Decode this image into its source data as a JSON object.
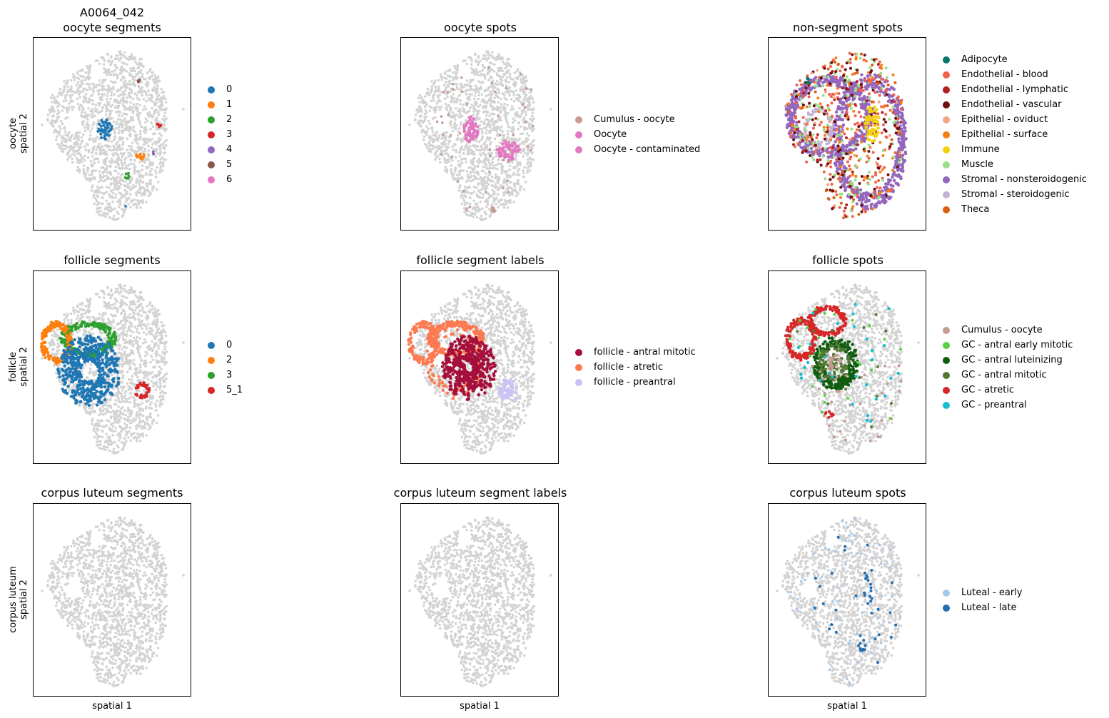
{
  "figure": {
    "sample_id": "A0064_042",
    "background_color": "#d3d3d3"
  },
  "rows": [
    {
      "ylabel_line1": "oocyte",
      "ylabel_line2": "spatial 2"
    },
    {
      "ylabel_line1": "follicle",
      "ylabel_line2": "spatial 2"
    },
    {
      "ylabel_line1": "corpus luteum",
      "ylabel_line2": "spatial 2"
    }
  ],
  "columns": [
    {
      "xlabel": "spatial 1"
    },
    {
      "xlabel": "spatial 1"
    },
    {
      "xlabel": "spatial 1"
    }
  ],
  "panels": [
    {
      "title": "oocyte segments",
      "legend": [
        {
          "label": "0",
          "color": "#1f77b4"
        },
        {
          "label": "1",
          "color": "#ff7f0e"
        },
        {
          "label": "2",
          "color": "#2ca02c"
        },
        {
          "label": "3",
          "color": "#d62728"
        },
        {
          "label": "4",
          "color": "#9467bd"
        },
        {
          "label": "5",
          "color": "#8c564b"
        },
        {
          "label": "6",
          "color": "#e377c2"
        }
      ]
    },
    {
      "title": "oocyte spots",
      "legend": [
        {
          "label": "Cumulus - oocyte",
          "color": "#c49c94"
        },
        {
          "label": "Oocyte",
          "color": "#e377c2"
        },
        {
          "label": "Oocyte - contaminated",
          "color": "#e377c2"
        }
      ]
    },
    {
      "title": "non-segment spots",
      "legend": [
        {
          "label": "Adipocyte",
          "color": "#08776b"
        },
        {
          "label": "Endothelial - blood",
          "color": "#f0604a"
        },
        {
          "label": "Endothelial - lymphatic",
          "color": "#b22025"
        },
        {
          "label": "Endothelial - vascular",
          "color": "#6b0f0f"
        },
        {
          "label": "Epithelial - oviduct",
          "color": "#f4a582"
        },
        {
          "label": "Epithelial - surface",
          "color": "#f57f17"
        },
        {
          "label": "Immune",
          "color": "#f5d00f"
        },
        {
          "label": "Muscle",
          "color": "#98df8a"
        },
        {
          "label": "Stromal - nonsteroidogenic",
          "color": "#9467bd"
        },
        {
          "label": "Stromal - steroidogenic",
          "color": "#c5b0d5"
        },
        {
          "label": "Theca",
          "color": "#d95f0e"
        }
      ]
    },
    {
      "title": "follicle segments",
      "legend": [
        {
          "label": "0",
          "color": "#1f77b4"
        },
        {
          "label": "2",
          "color": "#ff7f0e"
        },
        {
          "label": "3",
          "color": "#2ca02c"
        },
        {
          "label": "5_1",
          "color": "#d62728"
        }
      ]
    },
    {
      "title": "follicle segment labels",
      "legend": [
        {
          "label": "follicle - antral mitotic",
          "color": "#a50f3b"
        },
        {
          "label": "follicle - atretic",
          "color": "#fc7a50"
        },
        {
          "label": "follicle - preantral",
          "color": "#cbc3f5"
        }
      ]
    },
    {
      "title": "follicle spots",
      "legend": [
        {
          "label": "Cumulus - oocyte",
          "color": "#c49c94"
        },
        {
          "label": "GC - antral early mitotic",
          "color": "#5ccf45"
        },
        {
          "label": "GC - antral luteinizing",
          "color": "#0f5c0f"
        },
        {
          "label": "GC - antral mitotic",
          "color": "#527a35"
        },
        {
          "label": "GC - atretic",
          "color": "#d62728"
        },
        {
          "label": "GC - preantral",
          "color": "#17becf"
        }
      ]
    },
    {
      "title": "corpus luteum segments",
      "legend": []
    },
    {
      "title": "corpus luteum segment labels",
      "legend": []
    },
    {
      "title": "corpus luteum spots",
      "legend": [
        {
          "label": "Luteal - early",
          "color": "#a6c8e8"
        },
        {
          "label": "Luteal - late",
          "color": "#1f6fb2"
        }
      ]
    }
  ],
  "chart_data": {
    "type": "scatter",
    "plot_kind": "spatial embedding",
    "axes": {
      "xlabel": "spatial 1",
      "ylabel": "spatial 2",
      "ticks": "none"
    },
    "grid": false,
    "legend_placement": "right of each panel",
    "layout": "3 rows x 3 columns",
    "background_spot_color": "#d3d3d3"
  }
}
